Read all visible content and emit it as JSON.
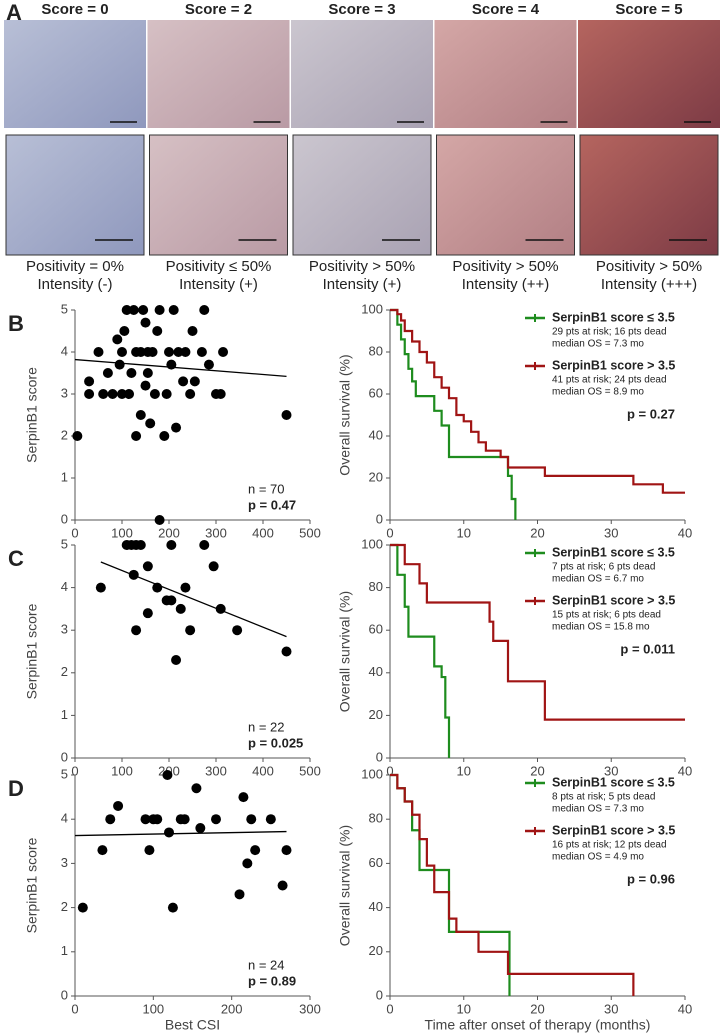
{
  "panel_a": {
    "label": "A",
    "columns": [
      {
        "score": "Score = 0",
        "positivity": "Positivity = 0%",
        "intensity": "Intensity (-)"
      },
      {
        "score": "Score = 2",
        "positivity": "Positivity ≤ 50%",
        "intensity": "Intensity (+)"
      },
      {
        "score": "Score = 3",
        "positivity": "Positivity > 50%",
        "intensity": "Intensity (+)"
      },
      {
        "score": "Score = 4",
        "positivity": "Positivity > 50%",
        "intensity": "Intensity (++)"
      },
      {
        "score": "Score = 5",
        "positivity": "Positivity > 50%",
        "intensity": "Intensity (+++)"
      }
    ]
  },
  "chart_data": [
    {
      "type": "scatter",
      "panel": "B",
      "y_label": "SerpinB1 score",
      "n_label": "n = 70",
      "p_label": "p = 0.47",
      "xlim": [
        0,
        500
      ],
      "xticks": [
        0,
        100,
        200,
        300,
        400,
        500
      ],
      "ylim": [
        0,
        5
      ],
      "yticks": [
        0,
        1,
        2,
        3,
        4,
        5
      ],
      "x": [
        5,
        30,
        30,
        50,
        60,
        70,
        80,
        90,
        95,
        100,
        100,
        105,
        110,
        115,
        120,
        125,
        130,
        130,
        140,
        140,
        145,
        150,
        150,
        155,
        155,
        160,
        165,
        170,
        175,
        180,
        180,
        190,
        195,
        200,
        205,
        210,
        215,
        220,
        230,
        235,
        245,
        250,
        255,
        270,
        275,
        285,
        300,
        310,
        315,
        450
      ],
      "values": [
        2,
        3,
        3.3,
        4,
        3,
        3.5,
        3,
        4.3,
        3.7,
        3,
        4,
        4.5,
        5,
        3,
        3.5,
        5,
        4,
        2,
        4,
        2.5,
        5,
        4.7,
        3.2,
        4,
        3.5,
        2.3,
        4,
        3,
        4.5,
        5,
        0,
        2,
        3,
        4,
        3.7,
        5,
        2.2,
        4,
        3.3,
        4,
        3,
        4.5,
        3.3,
        4,
        5,
        3.7,
        3,
        3,
        4,
        2.5
      ],
      "trend": {
        "x": [
          0,
          450
        ],
        "values": [
          3.82,
          3.42
        ]
      }
    },
    {
      "type": "survival",
      "y_label": "Overall survival (%)",
      "p_label": "p = 0.27",
      "xlim": [
        0,
        40
      ],
      "xticks": [
        0,
        10,
        20,
        30,
        40
      ],
      "ylim": [
        0,
        100
      ],
      "yticks": [
        0,
        20,
        40,
        60,
        80,
        100
      ],
      "series": [
        {
          "name": "SerpinB1 score ≤ 3.5",
          "color": "#1e8c1e",
          "details": [
            "29 pts at risk; 16 pts dead",
            "median OS = 7.3 mo"
          ],
          "x": [
            0,
            1,
            1.5,
            2,
            2.5,
            3,
            3.5,
            6,
            7,
            8,
            16,
            16.5,
            17
          ],
          "values": [
            100,
            93,
            86,
            79,
            72,
            66,
            59,
            52,
            45,
            30,
            21,
            10,
            0
          ]
        },
        {
          "name": "SerpinB1 score > 3.5",
          "color": "#a01414",
          "details": [
            "41 pts at risk; 24 pts dead",
            "median OS = 8.9 mo"
          ],
          "x": [
            0,
            1,
            1.5,
            2,
            3,
            4,
            5,
            6,
            7,
            8,
            9,
            10,
            11,
            12,
            13,
            15,
            16,
            21,
            33,
            37,
            40
          ],
          "values": [
            100,
            98,
            95,
            90,
            85,
            80,
            75,
            68,
            63,
            58,
            50,
            47,
            42,
            37,
            33,
            30,
            25,
            21,
            17,
            13,
            13
          ]
        }
      ]
    },
    {
      "type": "scatter",
      "panel": "C",
      "y_label": "SerpinB1 score",
      "n_label": "n = 22",
      "p_label": "p = 0.025",
      "xlim": [
        0,
        500
      ],
      "xticks": [
        0,
        100,
        200,
        300,
        400,
        500
      ],
      "ylim": [
        0,
        5
      ],
      "yticks": [
        0,
        1,
        2,
        3,
        4,
        5
      ],
      "x": [
        55,
        110,
        120,
        125,
        130,
        130,
        140,
        155,
        155,
        175,
        195,
        205,
        205,
        215,
        225,
        235,
        245,
        275,
        295,
        310,
        345,
        450
      ],
      "values": [
        4,
        5,
        5,
        4.3,
        3,
        5,
        5,
        3.4,
        4.5,
        4,
        3.7,
        5,
        3.7,
        2.3,
        3.5,
        4,
        3,
        5,
        4.5,
        3.5,
        3,
        2.5
      ],
      "trend": {
        "x": [
          55,
          450
        ],
        "values": [
          4.6,
          2.85
        ]
      }
    },
    {
      "type": "survival",
      "y_label": "Overall survival (%)",
      "p_label": "p = 0.011",
      "xlim": [
        0,
        40
      ],
      "xticks": [
        0,
        10,
        20,
        30,
        40
      ],
      "ylim": [
        0,
        100
      ],
      "yticks": [
        0,
        20,
        40,
        60,
        80,
        100
      ],
      "series": [
        {
          "name": "SerpinB1 score ≤ 3.5",
          "color": "#1e8c1e",
          "details": [
            "7 pts at risk; 6 pts dead",
            "median OS = 6.7 mo"
          ],
          "x": [
            0,
            1,
            2,
            2.5,
            6,
            7,
            7.5,
            8
          ],
          "values": [
            100,
            86,
            71,
            57,
            43,
            38,
            19,
            0
          ]
        },
        {
          "name": "SerpinB1 score > 3.5",
          "color": "#a01414",
          "details": [
            "15 pts at risk; 6 pts dead",
            "median OS = 15.8 mo"
          ],
          "x": [
            0,
            2,
            4,
            5,
            13.5,
            14,
            16,
            21,
            40
          ],
          "values": [
            100,
            91,
            82,
            73,
            64,
            55,
            36,
            18,
            18
          ]
        }
      ]
    },
    {
      "type": "scatter",
      "panel": "D",
      "y_label": "SerpinB1 score",
      "x_label": "Best CSI",
      "n_label": "n = 24",
      "p_label": "p = 0.89",
      "xlim": [
        0,
        300
      ],
      "xticks": [
        0,
        100,
        200,
        300
      ],
      "ylim": [
        0,
        5
      ],
      "yticks": [
        0,
        1,
        2,
        3,
        4,
        5
      ],
      "x": [
        10,
        35,
        45,
        55,
        90,
        95,
        100,
        105,
        118,
        120,
        125,
        135,
        140,
        155,
        160,
        180,
        210,
        215,
        220,
        225,
        230,
        250,
        270,
        265
      ],
      "values": [
        2,
        3.3,
        4,
        4.3,
        4,
        3.3,
        4,
        4,
        5,
        3.7,
        2,
        4,
        4,
        4.7,
        3.8,
        4,
        2.3,
        4.5,
        3,
        4,
        3.3,
        4,
        3.3,
        2.5
      ],
      "trend": {
        "x": [
          0,
          270
        ],
        "values": [
          3.63,
          3.72
        ]
      }
    },
    {
      "type": "survival",
      "y_label": "Overall survival (%)",
      "x_label": "Time after onset of therapy (months)",
      "p_label": "p = 0.96",
      "xlim": [
        0,
        40
      ],
      "xticks": [
        0,
        10,
        20,
        30,
        40
      ],
      "ylim": [
        0,
        100
      ],
      "yticks": [
        0,
        20,
        40,
        60,
        80,
        100
      ],
      "series": [
        {
          "name": "SerpinB1 score ≤ 3.5",
          "color": "#1e8c1e",
          "details": [
            "8 pts at risk; 5 pts dead",
            "median OS = 7.3 mo"
          ],
          "x": [
            0,
            1,
            2,
            3,
            4,
            7,
            8,
            16,
            16.2
          ],
          "values": [
            100,
            94,
            88,
            75,
            57,
            57,
            29,
            29,
            0
          ]
        },
        {
          "name": "SerpinB1 score > 3.5",
          "color": "#a01414",
          "details": [
            "16 pts at risk; 12 pts dead",
            "median OS = 4.9 mo"
          ],
          "x": [
            0,
            1,
            2,
            3,
            4,
            5,
            6,
            8,
            9,
            12,
            16,
            33,
            33
          ],
          "values": [
            100,
            94,
            88,
            82,
            71,
            59,
            47,
            35,
            29,
            20,
            10,
            10,
            0
          ]
        }
      ]
    }
  ]
}
